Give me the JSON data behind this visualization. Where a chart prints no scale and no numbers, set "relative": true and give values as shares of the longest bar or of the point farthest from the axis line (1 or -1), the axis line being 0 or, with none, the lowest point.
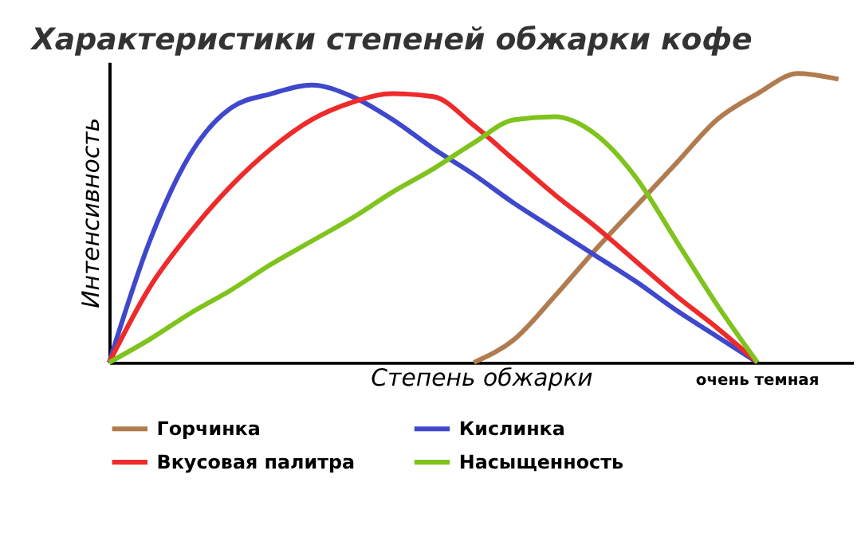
{
  "chart_data": {
    "type": "line",
    "title": "Характеристики степеней обжарки кофе",
    "xlabel": "Степень обжарки",
    "ylabel": "Интенсивность",
    "annotations": [
      "очень темная"
    ],
    "relative": true,
    "legend": "bottom",
    "grid": false,
    "marker": "none",
    "line_style": "solid",
    "categories": [
      null,
      null,
      null,
      null,
      null,
      null,
      null,
      null,
      null,
      null,
      null,
      null,
      null,
      null,
      null,
      null,
      null,
      null,
      null
    ],
    "series": [
      {
        "name": "Горчинка",
        "color": "#b07c4f",
        "values": [
          null,
          null,
          null,
          null,
          null,
          null,
          null,
          null,
          null,
          0,
          0.08,
          0.23,
          0.39,
          0.54,
          0.69,
          0.84,
          0.93,
          1,
          0.98
        ]
      },
      {
        "name": "Кислинка",
        "color": "#3f48cc",
        "values": [
          0,
          0.42,
          0.72,
          0.88,
          0.93,
          0.96,
          0.92,
          0.84,
          0.74,
          0.65,
          0.55,
          0.46,
          0.37,
          0.28,
          0.18,
          0.09,
          0,
          null,
          null
        ]
      },
      {
        "name": "Вкусовая палитра",
        "color": "#ee2a2a",
        "values": [
          0,
          0.26,
          0.45,
          0.61,
          0.74,
          0.84,
          0.9,
          0.93,
          0.92,
          0.82,
          0.7,
          0.58,
          0.47,
          0.35,
          0.23,
          0.12,
          0,
          null,
          null
        ]
      },
      {
        "name": "Насыщенность",
        "color": "#7fc31c",
        "values": [
          0,
          0.08,
          0.17,
          0.25,
          0.34,
          0.42,
          0.5,
          0.59,
          0.67,
          0.76,
          0.84,
          0.85,
          0.79,
          0.64,
          0.42,
          0.2,
          0,
          null,
          null
        ]
      }
    ]
  }
}
